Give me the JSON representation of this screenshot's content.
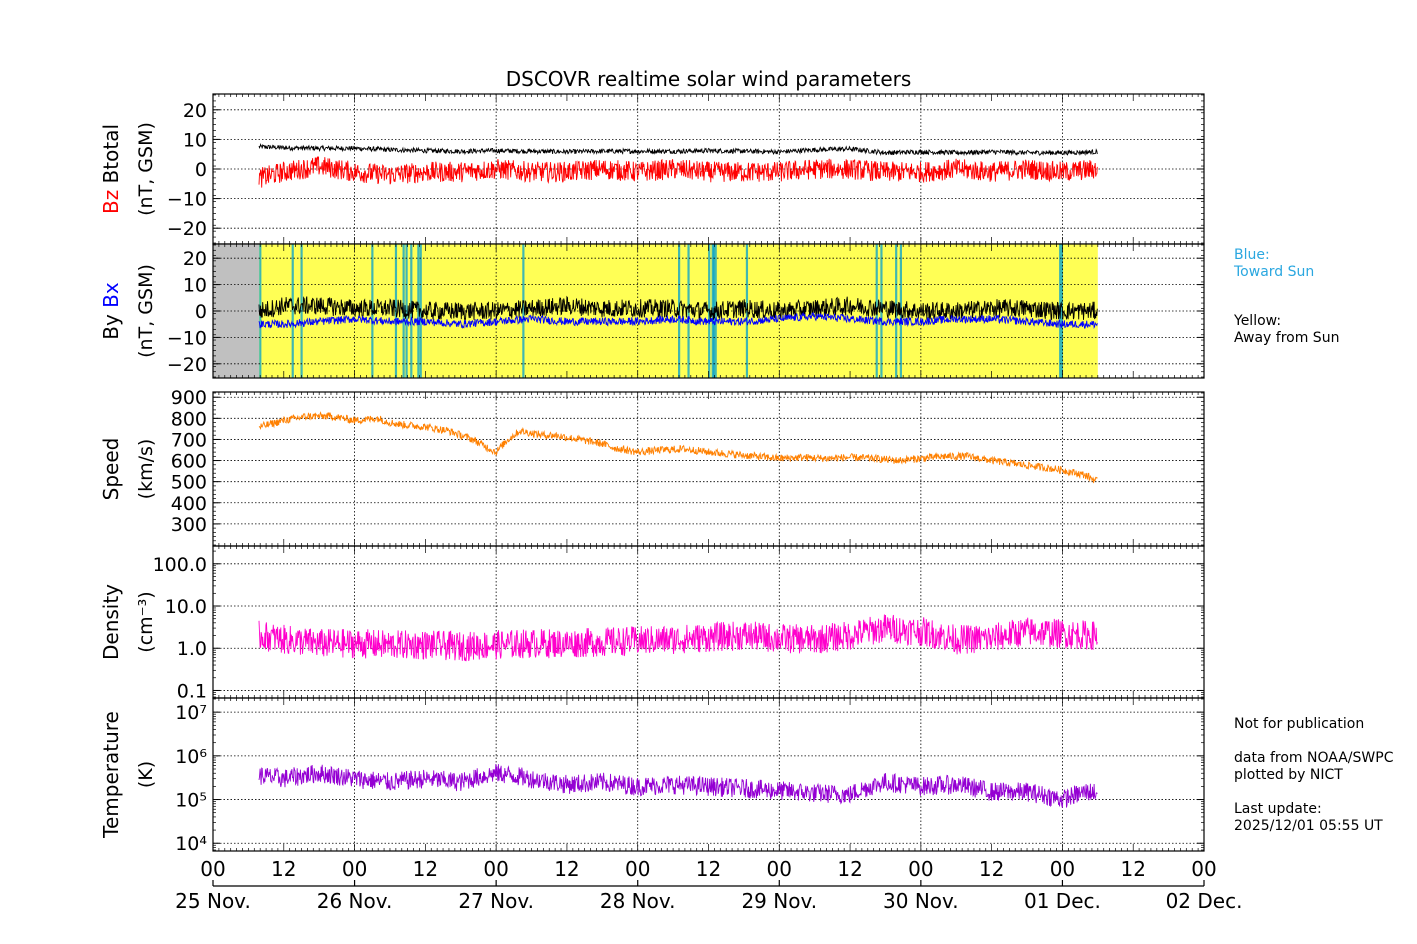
{
  "colors": {
    "btotal": "#000000",
    "bz": "#ff0000",
    "by": "#000000",
    "bx": "#0000ff",
    "speed": "#ff8000",
    "density": "#ff00cc",
    "temperature": "#9400d3",
    "away": "#ffff55",
    "toward": "#00a0d0",
    "nodata": "#c0c0c0",
    "legend_blue": "#2aa7e0"
  },
  "chart_data": {
    "type": "line",
    "title": "DSCOVR realtime solar wind parameters",
    "x_ticks_hours": [
      "00",
      "12",
      "00",
      "12",
      "00",
      "12",
      "00",
      "12",
      "00",
      "12",
      "00",
      "12",
      "00",
      "12",
      "00"
    ],
    "x_day_labels": [
      "25 Nov.",
      "26 Nov.",
      "27 Nov.",
      "28 Nov.",
      "29 Nov.",
      "30 Nov.",
      "01 Dec.",
      "02 Dec."
    ],
    "x_range_hours": [
      0,
      168
    ],
    "data_start_hour": 7.8,
    "data_end_hour": 150.0,
    "grid": true,
    "panels": [
      {
        "name": "magnetic-field-total",
        "ylabel_parts": [
          "Bz",
          "Btotal"
        ],
        "ylabel_unit": "(nT, GSM)",
        "ylim": [
          -25,
          25
        ],
        "yticks": [
          20,
          10,
          0,
          -10,
          -20
        ],
        "ytick_labels": [
          "20",
          "10",
          "0",
          "−10",
          "−20"
        ],
        "series": [
          {
            "name": "Btotal",
            "color_key": "btotal",
            "x": [
              8,
              12,
              18,
              24,
              30,
              36,
              42,
              48,
              54,
              60,
              66,
              72,
              78,
              84,
              90,
              96,
              102,
              108,
              114,
              120,
              126,
              132,
              138,
              144,
              150
            ],
            "y": [
              7.5,
              7.2,
              7.0,
              7.0,
              6.5,
              6.2,
              6.0,
              6.2,
              6.0,
              5.8,
              6.0,
              6.0,
              6.0,
              6.2,
              6.0,
              5.8,
              6.5,
              6.8,
              5.5,
              5.8,
              5.5,
              5.8,
              5.5,
              5.5,
              5.8
            ],
            "noise": 0.8
          },
          {
            "name": "Bz",
            "color_key": "bz",
            "x": [
              8,
              12,
              18,
              24,
              30,
              36,
              42,
              48,
              54,
              60,
              66,
              72,
              78,
              84,
              90,
              96,
              102,
              108,
              114,
              120,
              126,
              132,
              138,
              144,
              150
            ],
            "y": [
              -3,
              -1,
              1,
              -1,
              -2,
              -1,
              -1,
              0,
              -1,
              -1,
              0,
              -1,
              0,
              -1,
              -1,
              -1,
              0,
              0,
              -1,
              -1,
              0,
              -1,
              0,
              -1,
              0
            ],
            "noise": 3.5
          }
        ]
      },
      {
        "name": "magnetic-field-components",
        "ylabel_parts": [
          "By",
          "Bx"
        ],
        "ylabel_unit": "(nT, GSM)",
        "ylim": [
          -25,
          25
        ],
        "yticks": [
          20,
          10,
          0,
          -10,
          -20
        ],
        "ytick_labels": [
          "20",
          "10",
          "0",
          "−10",
          "−20"
        ],
        "series": [
          {
            "name": "By",
            "color_key": "by",
            "x": [
              8,
              12,
              18,
              24,
              30,
              36,
              42,
              48,
              54,
              60,
              66,
              72,
              78,
              84,
              90,
              96,
              102,
              108,
              114,
              120,
              126,
              132,
              138,
              144,
              150
            ],
            "y": [
              0,
              2,
              2,
              1,
              1,
              0,
              0,
              0,
              1,
              2,
              1,
              1,
              1,
              0,
              1,
              0,
              1,
              2,
              1,
              0,
              0,
              1,
              1,
              0,
              0
            ],
            "noise": 3.5
          },
          {
            "name": "Bx",
            "color_key": "bx",
            "x": [
              8,
              12,
              18,
              24,
              30,
              36,
              42,
              48,
              54,
              60,
              66,
              72,
              78,
              84,
              90,
              96,
              102,
              108,
              114,
              120,
              126,
              132,
              138,
              144,
              150
            ],
            "y": [
              -5,
              -5,
              -4,
              -3,
              -4,
              -4,
              -5,
              -4,
              -3,
              -4,
              -4,
              -4,
              -3,
              -4,
              -4,
              -3,
              -2,
              -3,
              -4,
              -4,
              -3,
              -3,
              -4,
              -5,
              -5
            ],
            "noise": 1.5
          }
        ],
        "imf_sector_background": {
          "away_color_key": "away",
          "toward_color_key": "toward",
          "nodata_range_hours": [
            0,
            7.8
          ],
          "toward_hours": [
            8,
            13.5,
            15,
            27,
            31,
            32.3,
            32.8,
            33.6,
            34.8,
            35.2,
            52.6,
            79,
            80.6,
            84.1,
            84.7,
            84.9,
            85.2,
            90.5,
            112.5,
            113.3,
            115.8,
            116.6,
            143.6,
            143.9
          ]
        }
      },
      {
        "name": "solar-wind-speed",
        "ylabel_parts": [
          "Speed"
        ],
        "ylabel_unit": "(km/s)",
        "ylim": [
          200,
          920
        ],
        "yticks": [
          900,
          800,
          700,
          600,
          500,
          400,
          300
        ],
        "ytick_labels": [
          "900",
          "800",
          "700",
          "600",
          "500",
          "400",
          "300"
        ],
        "series": [
          {
            "name": "Speed",
            "color_key": "speed",
            "x": [
              8,
              12,
              16,
              20,
              24,
              28,
              30,
              32,
              36,
              40,
              42,
              44,
              46,
              48,
              50,
              52,
              54,
              56,
              58,
              60,
              64,
              66,
              68,
              72,
              76,
              80,
              84,
              88,
              92,
              96,
              100,
              104,
              108,
              112,
              116,
              120,
              124,
              128,
              132,
              136,
              140,
              144,
              148,
              150
            ],
            "y": [
              760,
              790,
              810,
              810,
              790,
              800,
              780,
              770,
              760,
              740,
              720,
              700,
              670,
              640,
              700,
              740,
              730,
              720,
              720,
              710,
              690,
              680,
              660,
              640,
              650,
              655,
              640,
              630,
              620,
              610,
              615,
              610,
              615,
              610,
              600,
              610,
              620,
              620,
              600,
              585,
              570,
              555,
              530,
              500
            ],
            "noise": 18
          }
        ]
      },
      {
        "name": "proton-density",
        "ylabel_parts": [
          "Density"
        ],
        "ylabel_unit": "(cm⁻³)",
        "log": true,
        "ylim": [
          0.07,
          250
        ],
        "yticks": [
          100,
          10,
          1,
          0.1
        ],
        "ytick_labels": [
          "100.0",
          "10.0",
          "1.0",
          "0.1"
        ],
        "series": [
          {
            "name": "Density",
            "color_key": "density",
            "x": [
              8,
              12,
              18,
              24,
              30,
              36,
              42,
              48,
              54,
              60,
              66,
              72,
              78,
              84,
              90,
              96,
              102,
              108,
              114,
              120,
              126,
              132,
              138,
              144,
              150
            ],
            "y": [
              2.0,
              1.6,
              1.3,
              1.3,
              1.2,
              1.2,
              1.1,
              1.2,
              1.3,
              1.3,
              1.4,
              1.5,
              1.6,
              1.8,
              2.0,
              1.7,
              1.6,
              2.0,
              3.0,
              2.5,
              1.6,
              1.7,
              2.5,
              2.2,
              2.0
            ],
            "noise": 0.35
          }
        ]
      },
      {
        "name": "proton-temperature",
        "ylabel_parts": [
          "Temperature"
        ],
        "ylabel_unit": "(K)",
        "log": true,
        "ylim": [
          7000,
          20000000
        ],
        "yticks": [
          10000000,
          1000000,
          100000,
          10000
        ],
        "ytick_labels": [
          "10⁷",
          "10⁶",
          "10⁵",
          "10⁴"
        ],
        "series": [
          {
            "name": "Temperature",
            "color_key": "temperature",
            "x": [
              8,
              12,
              18,
              24,
              30,
              36,
              42,
              48,
              54,
              60,
              66,
              72,
              78,
              84,
              90,
              96,
              102,
              108,
              114,
              120,
              126,
              132,
              138,
              144,
              148,
              150
            ],
            "y": [
              350000,
              300000,
              400000,
              300000,
              250000,
              300000,
              250000,
              400000,
              300000,
              220000,
              250000,
              200000,
              220000,
              200000,
              180000,
              160000,
              140000,
              130000,
              250000,
              200000,
              220000,
              150000,
              150000,
              100000,
              150000,
              150000
            ],
            "noise": 0.22
          }
        ]
      }
    ]
  },
  "legend": {
    "blue_label": "Blue:",
    "blue_text": "Toward Sun",
    "yellow_label": "Yellow:",
    "yellow_text": "Away from Sun"
  },
  "notes": {
    "publication": "Not for publication",
    "source": "data from NOAA/SWPC",
    "plotted": "plotted by NICT",
    "update_label": "Last update:",
    "update_time": "2025/12/01 05:55 UT"
  }
}
